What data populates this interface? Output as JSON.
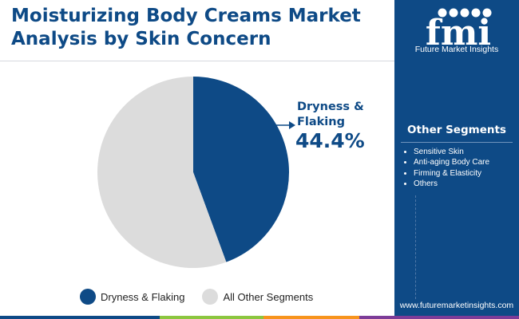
{
  "title_lines": [
    "Moisturizing Body Creams Market",
    "Analysis by Skin Concern"
  ],
  "colors": {
    "brand": "#0e4a86",
    "highlight_slice": "#0e4a86",
    "other_slice": "#dcdcdc",
    "accent_green": "#8cc63f",
    "accent_orange": "#f7941d",
    "accent_purple": "#7d3c98"
  },
  "chart_data": {
    "type": "pie",
    "slices": [
      {
        "label": "Dryness & Flaking",
        "value": 44.4,
        "color": "#0e4a86"
      },
      {
        "label": "All Other Segments",
        "value": 55.6,
        "color": "#dcdcdc"
      }
    ],
    "callout": {
      "label_lines": [
        "Dryness &",
        "Flaking"
      ],
      "value_text": "44.4%"
    },
    "legend": [
      "Dryness & Flaking",
      "All Other Segments"
    ],
    "legend_position": "bottom"
  },
  "sidebar": {
    "logo_text": "fmi",
    "logo_subtitle": "Future Market Insights",
    "segments_title": "Other Segments",
    "segments": [
      "Sensitive Skin",
      "Anti-aging Body Care",
      "Firming & Elasticity",
      "Others"
    ],
    "url": "www.futuremarketinsights.com"
  }
}
